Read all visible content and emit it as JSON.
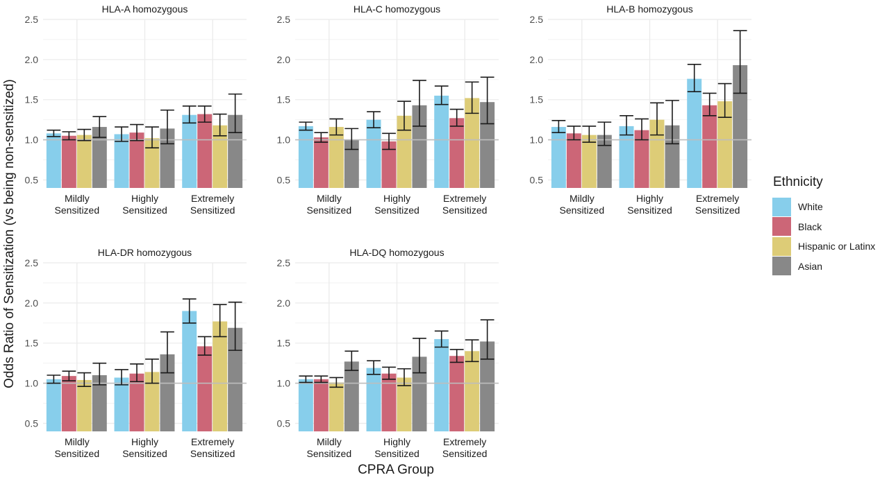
{
  "chart_data": {
    "type": "bar",
    "ylabel": "Odds Ratio of Sensitization (vs being non-sensitized)",
    "xlabel": "CPRA Group",
    "ylim": [
      0.4,
      2.5
    ],
    "yticks": [
      "0.5",
      "1.0",
      "1.5",
      "2.0",
      "2.5"
    ],
    "reference_line": 1.0,
    "grid": true,
    "legend": {
      "title": "Ethnicity",
      "placement": "right",
      "entries": [
        "White",
        "Black",
        "Hispanic or Latinx",
        "Asian"
      ]
    },
    "colors": {
      "White": "#87ceeb",
      "Black": "#cc6677",
      "Hispanic or Latinx": "#ddcc77",
      "Asian": "#888888"
    },
    "categories": [
      [
        "Mildly",
        "Sensitized"
      ],
      [
        "Highly",
        "Sensitized"
      ],
      [
        "Extremely",
        "Sensitized"
      ]
    ],
    "panels": [
      {
        "title": "HLA-A homozygous",
        "series": [
          {
            "name": "White",
            "values": [
              1.08,
              1.07,
              1.31
            ],
            "ci_low": [
              1.04,
              0.98,
              1.21
            ],
            "ci_high": [
              1.12,
              1.16,
              1.42
            ]
          },
          {
            "name": "Black",
            "values": [
              1.05,
              1.09,
              1.32
            ],
            "ci_low": [
              1.0,
              0.99,
              1.22
            ],
            "ci_high": [
              1.1,
              1.19,
              1.42
            ]
          },
          {
            "name": "Hispanic or Latinx",
            "values": [
              1.06,
              1.02,
              1.18
            ],
            "ci_low": [
              0.99,
              0.9,
              1.05
            ],
            "ci_high": [
              1.13,
              1.16,
              1.32
            ]
          },
          {
            "name": "Asian",
            "values": [
              1.16,
              1.14,
              1.31
            ],
            "ci_low": [
              1.03,
              0.95,
              1.09
            ],
            "ci_high": [
              1.29,
              1.37,
              1.57
            ]
          }
        ]
      },
      {
        "title": "HLA-C homozygous",
        "series": [
          {
            "name": "White",
            "values": [
              1.17,
              1.25,
              1.55
            ],
            "ci_low": [
              1.12,
              1.15,
              1.44
            ],
            "ci_high": [
              1.22,
              1.35,
              1.67
            ]
          },
          {
            "name": "Black",
            "values": [
              1.03,
              0.98,
              1.27
            ],
            "ci_low": [
              0.97,
              0.88,
              1.17
            ],
            "ci_high": [
              1.09,
              1.08,
              1.38
            ]
          },
          {
            "name": "Hispanic or Latinx",
            "values": [
              1.16,
              1.3,
              1.52
            ],
            "ci_low": [
              1.06,
              1.12,
              1.33
            ],
            "ci_high": [
              1.26,
              1.48,
              1.72
            ]
          },
          {
            "name": "Asian",
            "values": [
              1.0,
              1.43,
              1.47
            ],
            "ci_low": [
              0.88,
              1.17,
              1.2
            ],
            "ci_high": [
              1.14,
              1.74,
              1.78
            ]
          }
        ]
      },
      {
        "title": "HLA-B homozygous",
        "series": [
          {
            "name": "White",
            "values": [
              1.16,
              1.17,
              1.76
            ],
            "ci_low": [
              1.09,
              1.06,
              1.6
            ],
            "ci_high": [
              1.24,
              1.3,
              1.94
            ]
          },
          {
            "name": "Black",
            "values": [
              1.08,
              1.12,
              1.43
            ],
            "ci_low": [
              1.0,
              1.0,
              1.3
            ],
            "ci_high": [
              1.17,
              1.26,
              1.58
            ]
          },
          {
            "name": "Hispanic or Latinx",
            "values": [
              1.06,
              1.25,
              1.48
            ],
            "ci_low": [
              0.97,
              1.06,
              1.28
            ],
            "ci_high": [
              1.17,
              1.46,
              1.7
            ]
          },
          {
            "name": "Asian",
            "values": [
              1.06,
              1.18,
              1.93
            ],
            "ci_low": [
              0.93,
              0.95,
              1.58
            ],
            "ci_high": [
              1.22,
              1.49,
              2.36
            ]
          }
        ]
      },
      {
        "title": "HLA-DR homozygous",
        "series": [
          {
            "name": "White",
            "values": [
              1.05,
              1.07,
              1.9
            ],
            "ci_low": [
              1.0,
              0.98,
              1.75
            ],
            "ci_high": [
              1.1,
              1.17,
              2.05
            ]
          },
          {
            "name": "Black",
            "values": [
              1.09,
              1.12,
              1.46
            ],
            "ci_low": [
              1.03,
              1.02,
              1.35
            ],
            "ci_high": [
              1.15,
              1.24,
              1.58
            ]
          },
          {
            "name": "Hispanic or Latinx",
            "values": [
              1.04,
              1.14,
              1.77
            ],
            "ci_low": [
              0.96,
              1.0,
              1.58
            ],
            "ci_high": [
              1.13,
              1.3,
              1.98
            ]
          },
          {
            "name": "Asian",
            "values": [
              1.1,
              1.36,
              1.69
            ],
            "ci_low": [
              0.98,
              1.13,
              1.41
            ],
            "ci_high": [
              1.25,
              1.64,
              2.01
            ]
          }
        ]
      },
      {
        "title": "HLA-DQ homozygous",
        "series": [
          {
            "name": "White",
            "values": [
              1.05,
              1.19,
              1.55
            ],
            "ci_low": [
              1.01,
              1.11,
              1.45
            ],
            "ci_high": [
              1.09,
              1.28,
              1.65
            ]
          },
          {
            "name": "Black",
            "values": [
              1.05,
              1.12,
              1.34
            ],
            "ci_low": [
              1.01,
              1.05,
              1.26
            ],
            "ci_high": [
              1.09,
              1.2,
              1.42
            ]
          },
          {
            "name": "Hispanic or Latinx",
            "values": [
              1.01,
              1.07,
              1.4
            ],
            "ci_low": [
              0.95,
              0.97,
              1.27
            ],
            "ci_high": [
              1.07,
              1.18,
              1.54
            ]
          },
          {
            "name": "Asian",
            "values": [
              1.27,
              1.33,
              1.52
            ],
            "ci_low": [
              1.16,
              1.13,
              1.3
            ],
            "ci_high": [
              1.4,
              1.56,
              1.79
            ]
          }
        ]
      }
    ]
  }
}
